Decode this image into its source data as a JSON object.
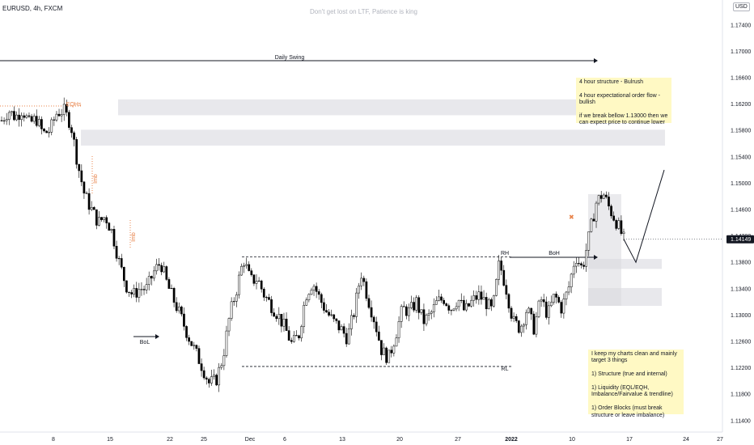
{
  "header": {
    "symbol": "EURUSD, 4h, FXCM",
    "watermark": "Don't get lost on LTF, Patience is king",
    "currency": "USD"
  },
  "colors": {
    "candle": "#000000",
    "zone": "#e8e8ec",
    "zone_dark": "#d9d9de",
    "orange": "#e8834a",
    "note_bg": "#fff9c4",
    "price_badge": "#131722"
  },
  "notes": {
    "structure": "4 hour structure - Bulrush\n\n4 hour expectational order flow - bullish\n\nif we break bellow 1.13000 then we can expect price to continue lower",
    "method": "I keep my charts clean and mainly target 3 things\n\n1) Structure (true and internal)\n\n1) Liquidity (EQL/EQH, Imbalance/Fairvalue & trendline)\n\n1) Order Blocks (must break structure or leave imbalance)"
  },
  "chart_data": {
    "type": "candlestick",
    "ylim": [
      1.1125,
      1.1765
    ],
    "y_ticks": [
      "1.17400",
      "1.17000",
      "1.16600",
      "1.16200",
      "1.15800",
      "1.15400",
      "1.15000",
      "1.14600",
      "1.14200",
      "1.13800",
      "1.13400",
      "1.13000",
      "1.12600",
      "1.12200",
      "1.11800",
      "1.11400"
    ],
    "x_ticks": [
      "8",
      "15",
      "22",
      "25",
      "Dec",
      "6",
      "13",
      "20",
      "27",
      "2022",
      "10",
      "17",
      "24",
      "27"
    ],
    "current_price": "1.14149",
    "annotations": {
      "daily_swing": "Daily Swing",
      "eqhs": "EQHs",
      "imb1": "Imb",
      "imb2": "Imb",
      "bol": "BoL",
      "rh": "RH",
      "boh": "BoH",
      "rl": "RL"
    },
    "key_levels": {
      "range_high": 1.1388,
      "range_low": 1.1222,
      "eqh": 1.1617
    },
    "zones": [
      {
        "from": 1.1557,
        "to": 1.1581
      },
      {
        "from": 1.1603,
        "to": 1.1627
      },
      {
        "from": 1.137,
        "to": 1.1385
      },
      {
        "from": 1.1314,
        "to": 1.1341
      }
    ],
    "price_path": [
      1.1595,
      1.161,
      1.16,
      1.1612,
      1.159,
      1.1598,
      1.1575,
      1.158,
      1.1607,
      1.161,
      1.159,
      1.153,
      1.1482,
      1.146,
      1.144,
      1.145,
      1.1425,
      1.138,
      1.1345,
      1.133,
      1.134,
      1.134,
      1.1365,
      1.138,
      1.1345,
      1.132,
      1.1295,
      1.1268,
      1.1245,
      1.1222,
      1.1197,
      1.12,
      1.1235,
      1.13,
      1.134,
      1.1385,
      1.1352,
      1.1355,
      1.133,
      1.1315,
      1.13,
      1.128,
      1.1255,
      1.127,
      1.133,
      1.135,
      1.1325,
      1.1305,
      1.129,
      1.128,
      1.1265,
      1.1305,
      1.1365,
      1.1325,
      1.129,
      1.1245,
      1.1235,
      1.127,
      1.131,
      1.1305,
      1.132,
      1.129,
      1.13,
      1.132,
      1.1325,
      1.131,
      1.1325,
      1.1305,
      1.132,
      1.133,
      1.132,
      1.1305,
      1.138,
      1.134,
      1.129,
      1.128,
      1.131,
      1.128,
      1.1325,
      1.13,
      1.133,
      1.131,
      1.134,
      1.139,
      1.137,
      1.142,
      1.147,
      1.1485,
      1.146,
      1.144,
      1.1415
    ],
    "projection": [
      1.1415,
      1.138,
      1.152
    ]
  }
}
